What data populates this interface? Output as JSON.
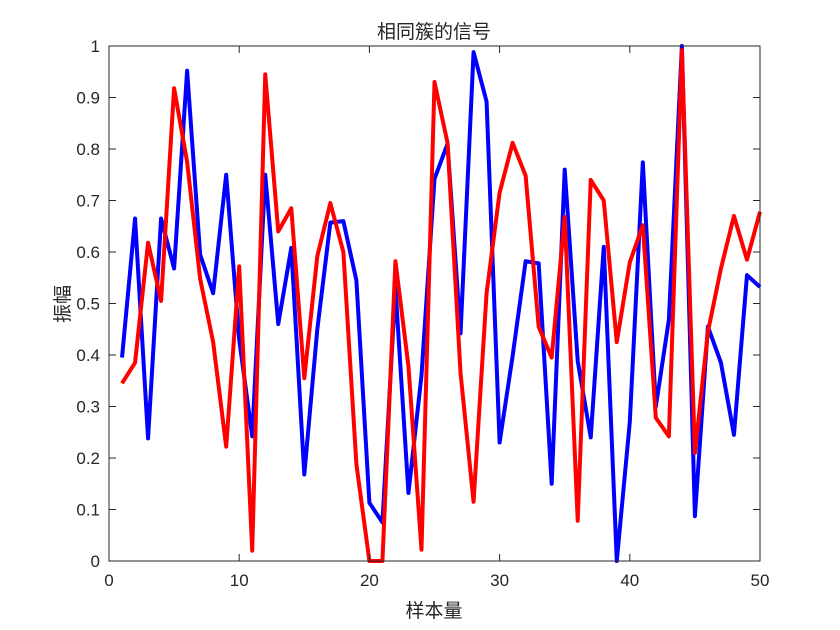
{
  "chart_data": {
    "type": "line",
    "title": "相同簇的信号",
    "xlabel": "样本量",
    "ylabel": "振幅",
    "xlim": [
      0,
      50
    ],
    "ylim": [
      0,
      1
    ],
    "xticks": [
      "0",
      "10",
      "20",
      "30",
      "40",
      "50"
    ],
    "yticks": [
      "0",
      "0.1",
      "0.2",
      "0.3",
      "0.4",
      "0.5",
      "0.6",
      "0.7",
      "0.8",
      "0.9",
      "1"
    ],
    "grid": false,
    "x": [
      1,
      2,
      3,
      4,
      5,
      6,
      7,
      8,
      9,
      10,
      11,
      12,
      13,
      14,
      15,
      16,
      17,
      18,
      19,
      20,
      21,
      22,
      23,
      24,
      25,
      26,
      27,
      28,
      29,
      30,
      31,
      32,
      33,
      34,
      35,
      36,
      37,
      38,
      39,
      40,
      41,
      42,
      43,
      44,
      45,
      46,
      47,
      48,
      49,
      50
    ],
    "series": [
      {
        "color": "#0000ff",
        "values": [
          0.395,
          0.665,
          0.238,
          0.665,
          0.568,
          0.952,
          0.595,
          0.52,
          0.75,
          0.43,
          0.242,
          0.75,
          0.46,
          0.608,
          0.168,
          0.45,
          0.657,
          0.66,
          0.545,
          0.113,
          0.075,
          0.53,
          0.132,
          0.36,
          0.742,
          0.81,
          0.442,
          0.988,
          0.892,
          0.23,
          0.398,
          0.582,
          0.578,
          0.15,
          0.76,
          0.388,
          0.24,
          0.61,
          0.0,
          0.27,
          0.774,
          0.3,
          0.468,
          1.0,
          0.087,
          0.455,
          0.385,
          0.245,
          0.555,
          0.532
        ]
      },
      {
        "color": "#ff0000",
        "values": [
          0.345,
          0.385,
          0.618,
          0.505,
          0.918,
          0.775,
          0.548,
          0.425,
          0.222,
          0.572,
          0.02,
          0.945,
          0.64,
          0.685,
          0.355,
          0.592,
          0.695,
          0.6,
          0.188,
          0.0,
          0.0,
          0.582,
          0.378,
          0.022,
          0.93,
          0.812,
          0.365,
          0.115,
          0.52,
          0.715,
          0.812,
          0.748,
          0.455,
          0.395,
          0.668,
          0.078,
          0.74,
          0.7,
          0.425,
          0.58,
          0.652,
          0.278,
          0.242,
          0.992,
          0.21,
          0.445,
          0.568,
          0.67,
          0.585,
          0.678
        ]
      }
    ]
  }
}
